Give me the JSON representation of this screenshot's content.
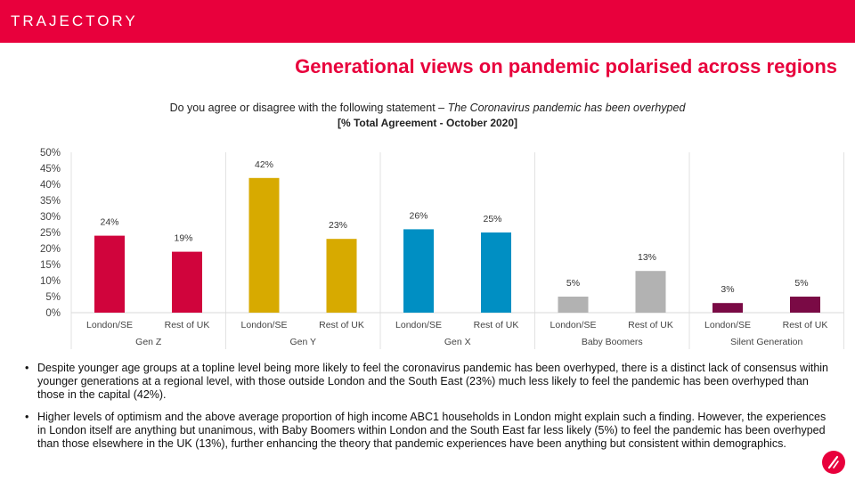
{
  "header": {
    "logo_text": "TRAJECTORY",
    "bar_color": "#e8003c"
  },
  "title": "Generational views on pandemic polarised across regions",
  "question": {
    "prefix": "Do you agree or disagree with the following statement – ",
    "statement": "The Coronavirus pandemic has been overhyped",
    "subtitle": "[% Total Agreement - October 2020]"
  },
  "chart_data": {
    "type": "bar",
    "ylim": [
      0,
      50
    ],
    "yticks": [
      "0%",
      "5%",
      "10%",
      "15%",
      "20%",
      "25%",
      "30%",
      "35%",
      "40%",
      "45%",
      "50%"
    ],
    "grid": false,
    "groups": [
      {
        "name": "Gen Z",
        "color": "#d0043c",
        "bars": [
          {
            "label": "London/SE",
            "value": 24,
            "display": "24%"
          },
          {
            "label": "Rest of UK",
            "value": 19,
            "display": "19%"
          }
        ]
      },
      {
        "name": "Gen Y",
        "color": "#d7aa00",
        "bars": [
          {
            "label": "London/SE",
            "value": 42,
            "display": "42%"
          },
          {
            "label": "Rest of UK",
            "value": 23,
            "display": "23%"
          }
        ]
      },
      {
        "name": "Gen X",
        "color": "#008fc3",
        "bars": [
          {
            "label": "London/SE",
            "value": 26,
            "display": "26%"
          },
          {
            "label": "Rest of UK",
            "value": 25,
            "display": "25%"
          }
        ]
      },
      {
        "name": "Baby Boomers",
        "color": "#b2b2b2",
        "bars": [
          {
            "label": "London/SE",
            "value": 5,
            "display": "5%"
          },
          {
            "label": "Rest of UK",
            "value": 13,
            "display": "13%"
          }
        ]
      },
      {
        "name": "Silent Generation",
        "color": "#7a0a45",
        "bars": [
          {
            "label": "London/SE",
            "value": 3,
            "display": "3%"
          },
          {
            "label": "Rest of UK",
            "value": 5,
            "display": "5%"
          }
        ]
      }
    ]
  },
  "bullets": [
    "Despite younger age groups at a topline level being more likely to feel the coronavirus pandemic has been overhyped, there is a distinct lack of consensus within younger generations at a regional level, with those outside London and the South East (23%) much less likely to feel the pandemic has been overhyped than those in the capital (42%).",
    "Higher levels of optimism and the above average proportion of high income ABC1 households in London might explain such a finding. However, the experiences in London itself are anything but unanimous, with Baby Boomers within London and the South East far less likely (5%) to feel the pandemic has been overhyped than those elsewhere in the UK (13%), further enhancing the theory that pandemic experiences have been anything but consistent within demographics."
  ],
  "corner_icon": "trajectory-mark-icon"
}
